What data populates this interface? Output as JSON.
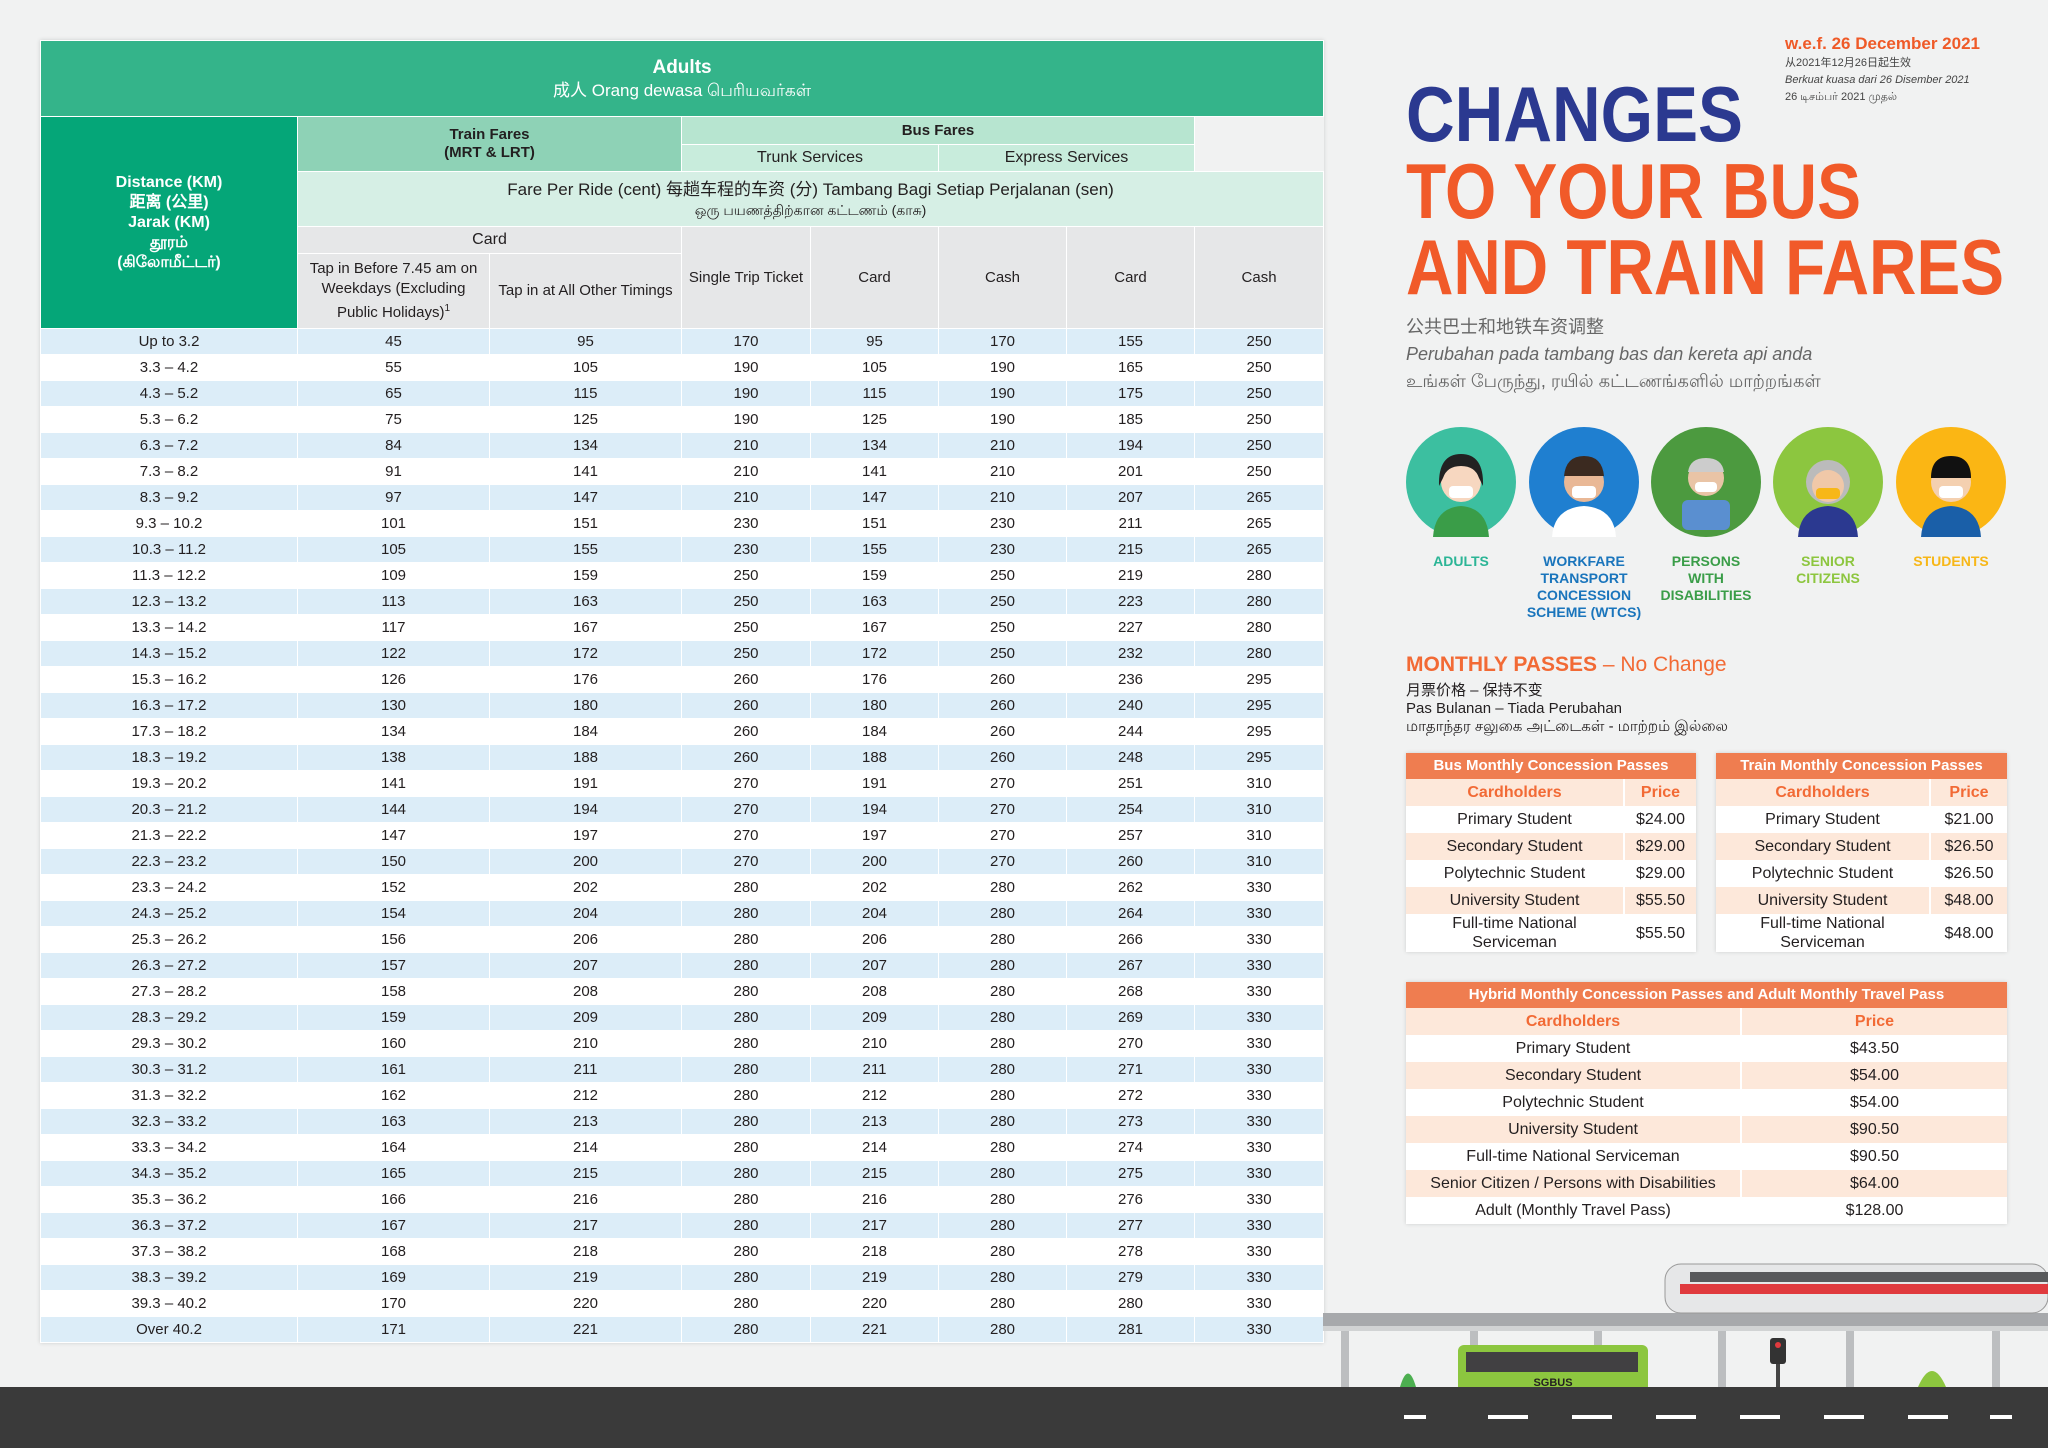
{
  "fare_table": {
    "title": "Adults",
    "subtitle": "成人  Orang dewasa  பெரியவர்கள்",
    "distance_header": [
      "Distance (KM)",
      "距离 (公里)",
      "Jarak (KM)",
      "தூரம்",
      "(கிலோமீட்டர்)"
    ],
    "train_header": [
      "Train Fares",
      "(MRT & LRT)"
    ],
    "bus_header": "Bus Fares",
    "trunk": "Trunk Services",
    "express": "Express Services",
    "fare_per_ride": "Fare Per Ride (cent)  每趟车程的车资 (分)  Tambang Bagi Setiap Perjalanan (sen)",
    "fare_per_ride_tamil": "ஒரு பயணத்திற்கான கட்டணம் (காசு)",
    "card_group": "Card",
    "columns": [
      {
        "text": "Tap in Before 7.45 am on Weekdays (Excluding Public Holidays)",
        "note": "1"
      },
      {
        "text": "Tap in at All Other Timings"
      },
      {
        "text": "Single Trip Ticket"
      },
      {
        "text": "Card"
      },
      {
        "text": "Cash"
      },
      {
        "text": "Card"
      },
      {
        "text": "Cash"
      }
    ],
    "rows": [
      [
        "Up to 3.2",
        45,
        95,
        170,
        95,
        170,
        155,
        250
      ],
      [
        "3.3 – 4.2",
        55,
        105,
        190,
        105,
        190,
        165,
        250
      ],
      [
        "4.3 – 5.2",
        65,
        115,
        190,
        115,
        190,
        175,
        250
      ],
      [
        "5.3 – 6.2",
        75,
        125,
        190,
        125,
        190,
        185,
        250
      ],
      [
        "6.3 – 7.2",
        84,
        134,
        210,
        134,
        210,
        194,
        250
      ],
      [
        "7.3 – 8.2",
        91,
        141,
        210,
        141,
        210,
        201,
        250
      ],
      [
        "8.3 – 9.2",
        97,
        147,
        210,
        147,
        210,
        207,
        265
      ],
      [
        "9.3 – 10.2",
        101,
        151,
        230,
        151,
        230,
        211,
        265
      ],
      [
        "10.3 – 11.2",
        105,
        155,
        230,
        155,
        230,
        215,
        265
      ],
      [
        "11.3 – 12.2",
        109,
        159,
        250,
        159,
        250,
        219,
        280
      ],
      [
        "12.3 – 13.2",
        113,
        163,
        250,
        163,
        250,
        223,
        280
      ],
      [
        "13.3 – 14.2",
        117,
        167,
        250,
        167,
        250,
        227,
        280
      ],
      [
        "14.3 – 15.2",
        122,
        172,
        250,
        172,
        250,
        232,
        280
      ],
      [
        "15.3 – 16.2",
        126,
        176,
        260,
        176,
        260,
        236,
        295
      ],
      [
        "16.3 – 17.2",
        130,
        180,
        260,
        180,
        260,
        240,
        295
      ],
      [
        "17.3 – 18.2",
        134,
        184,
        260,
        184,
        260,
        244,
        295
      ],
      [
        "18.3 – 19.2",
        138,
        188,
        260,
        188,
        260,
        248,
        295
      ],
      [
        "19.3 – 20.2",
        141,
        191,
        270,
        191,
        270,
        251,
        310
      ],
      [
        "20.3 – 21.2",
        144,
        194,
        270,
        194,
        270,
        254,
        310
      ],
      [
        "21.3 – 22.2",
        147,
        197,
        270,
        197,
        270,
        257,
        310
      ],
      [
        "22.3 – 23.2",
        150,
        200,
        270,
        200,
        270,
        260,
        310
      ],
      [
        "23.3 – 24.2",
        152,
        202,
        280,
        202,
        280,
        262,
        330
      ],
      [
        "24.3 – 25.2",
        154,
        204,
        280,
        204,
        280,
        264,
        330
      ],
      [
        "25.3 – 26.2",
        156,
        206,
        280,
        206,
        280,
        266,
        330
      ],
      [
        "26.3 – 27.2",
        157,
        207,
        280,
        207,
        280,
        267,
        330
      ],
      [
        "27.3 – 28.2",
        158,
        208,
        280,
        208,
        280,
        268,
        330
      ],
      [
        "28.3 – 29.2",
        159,
        209,
        280,
        209,
        280,
        269,
        330
      ],
      [
        "29.3 – 30.2",
        160,
        210,
        280,
        210,
        280,
        270,
        330
      ],
      [
        "30.3 – 31.2",
        161,
        211,
        280,
        211,
        280,
        271,
        330
      ],
      [
        "31.3 – 32.2",
        162,
        212,
        280,
        212,
        280,
        272,
        330
      ],
      [
        "32.3 – 33.2",
        163,
        213,
        280,
        213,
        280,
        273,
        330
      ],
      [
        "33.3 – 34.2",
        164,
        214,
        280,
        214,
        280,
        274,
        330
      ],
      [
        "34.3 – 35.2",
        165,
        215,
        280,
        215,
        280,
        275,
        330
      ],
      [
        "35.3 – 36.2",
        166,
        216,
        280,
        216,
        280,
        276,
        330
      ],
      [
        "36.3 – 37.2",
        167,
        217,
        280,
        217,
        280,
        277,
        330
      ],
      [
        "37.3 – 38.2",
        168,
        218,
        280,
        218,
        280,
        278,
        330
      ],
      [
        "38.3 – 39.2",
        169,
        219,
        280,
        219,
        280,
        279,
        330
      ],
      [
        "39.3 – 40.2",
        170,
        220,
        280,
        220,
        280,
        280,
        330
      ],
      [
        "Over 40.2",
        171,
        221,
        280,
        221,
        280,
        281,
        330
      ]
    ]
  },
  "effective": [
    "w.e.f. 26 December 2021",
    "从2021年12月26日起生效",
    "Berkuat kuasa dari 26 Disember 2021",
    "26 டிசம்பர் 2021 முதல்"
  ],
  "headline": [
    "CHANGES",
    "TO YOUR BUS",
    "AND TRAIN FARES"
  ],
  "subheadline": [
    "公共巴士和地铁车资调整",
    "Perubahan pada tambang bas dan kereta api anda",
    "உங்கள் பேருந்து, ரயில் கட்டணங்களில் மாற்றங்கள்"
  ],
  "groups": [
    "ADULTS",
    "WORKFARE TRANSPORT CONCESSION SCHEME (WTCS)",
    "PERSONS WITH DISABILITIES",
    "SENIOR CITIZENS",
    "STUDENTS"
  ],
  "monthly": {
    "title": "MONTHLY PASSES",
    "status": "– No Change",
    "lines": [
      "月票价格 – 保持不变",
      "Pas Bulanan – Tiada Perubahan",
      "மாதாந்தர சலுகை அட்டைகள் - மாற்றம் இல்லை"
    ]
  },
  "pass_tables": [
    {
      "title": "Bus Monthly Concession Passes",
      "headers": [
        "Cardholders",
        "Price"
      ],
      "rows": [
        [
          "Primary Student",
          "$24.00"
        ],
        [
          "Secondary Student",
          "$29.00"
        ],
        [
          "Polytechnic Student",
          "$29.00"
        ],
        [
          "University Student",
          "$55.50"
        ],
        [
          "Full-time National Serviceman",
          "$55.50"
        ]
      ]
    },
    {
      "title": "Train Monthly Concession Passes",
      "headers": [
        "Cardholders",
        "Price"
      ],
      "rows": [
        [
          "Primary Student",
          "$21.00"
        ],
        [
          "Secondary Student",
          "$26.50"
        ],
        [
          "Polytechnic Student",
          "$26.50"
        ],
        [
          "University Student",
          "$48.00"
        ],
        [
          "Full-time National Serviceman",
          "$48.00"
        ]
      ]
    },
    {
      "title": "Hybrid Monthly Concession Passes and Adult Monthly Travel Pass",
      "headers": [
        "Cardholders",
        "Price"
      ],
      "rows": [
        [
          "Primary Student",
          "$43.50"
        ],
        [
          "Secondary Student",
          "$54.00"
        ],
        [
          "Polytechnic Student",
          "$54.00"
        ],
        [
          "University Student",
          "$90.50"
        ],
        [
          "Full-time National Serviceman",
          "$90.50"
        ],
        [
          "Senior Citizen / Persons with Disabilities",
          "$64.00"
        ],
        [
          "Adult (Monthly Travel Pass)",
          "$128.00"
        ]
      ]
    }
  ],
  "bus_logo": "SGBUS"
}
